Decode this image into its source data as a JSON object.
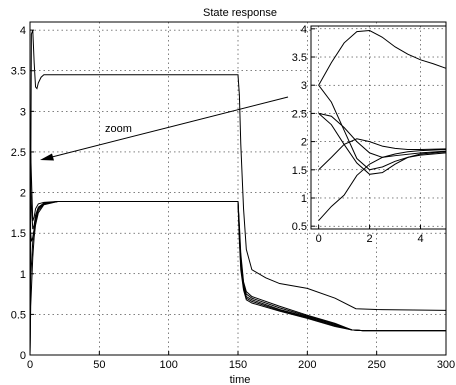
{
  "chart_data": [
    {
      "type": "line",
      "role": "main",
      "title": "State response",
      "xlabel": "time",
      "ylabel": "",
      "xlim": [
        0,
        300
      ],
      "ylim": [
        0,
        4.1
      ],
      "xticks": [
        0,
        50,
        100,
        150,
        200,
        250,
        300
      ],
      "yticks": [
        0,
        0.5,
        1,
        1.5,
        2,
        2.5,
        3,
        3.5,
        4
      ],
      "grid": true,
      "annotation": "zoom",
      "series": [
        {
          "points": [
            [
              0,
              0
            ],
            [
              1,
              3.95
            ],
            [
              2,
              4.0
            ],
            [
              3,
              3.6
            ],
            [
              4,
              3.3
            ],
            [
              5,
              3.28
            ],
            [
              6,
              3.35
            ],
            [
              8,
              3.42
            ],
            [
              10,
              3.45
            ],
            [
              20,
              3.45
            ],
            [
              100,
              3.45
            ],
            [
              150,
              3.45
            ],
            [
              151,
              3.2
            ],
            [
              152,
              2.6
            ],
            [
              154,
              1.8
            ],
            [
              156,
              1.3
            ],
            [
              160,
              1.05
            ],
            [
              170,
              0.95
            ],
            [
              180,
              0.88
            ],
            [
              200,
              0.82
            ],
            [
              220,
              0.7
            ],
            [
              235,
              0.57
            ],
            [
              250,
              0.56
            ],
            [
              300,
              0.55
            ]
          ]
        },
        {
          "points": [
            [
              0,
              0
            ],
            [
              0.5,
              2.5
            ],
            [
              1,
              2.2
            ],
            [
              2,
              1.65
            ],
            [
              3,
              1.7
            ],
            [
              4,
              1.8
            ],
            [
              6,
              1.86
            ],
            [
              10,
              1.88
            ],
            [
              20,
              1.89
            ],
            [
              100,
              1.89
            ],
            [
              150,
              1.89
            ],
            [
              151,
              1.6
            ],
            [
              152,
              1.25
            ],
            [
              154,
              0.9
            ],
            [
              156,
              0.78
            ],
            [
              160,
              0.72
            ],
            [
              180,
              0.6
            ],
            [
              200,
              0.49
            ],
            [
              220,
              0.39
            ],
            [
              232,
              0.31
            ],
            [
              240,
              0.3
            ],
            [
              300,
              0.3
            ]
          ]
        },
        {
          "points": [
            [
              0,
              0
            ],
            [
              0.5,
              2.0
            ],
            [
              1,
              1.85
            ],
            [
              2,
              1.55
            ],
            [
              3,
              1.6
            ],
            [
              4,
              1.72
            ],
            [
              6,
              1.82
            ],
            [
              10,
              1.87
            ],
            [
              20,
              1.89
            ],
            [
              100,
              1.89
            ],
            [
              150,
              1.89
            ],
            [
              151,
              1.55
            ],
            [
              152,
              1.2
            ],
            [
              154,
              0.88
            ],
            [
              156,
              0.75
            ],
            [
              160,
              0.7
            ],
            [
              180,
              0.58
            ],
            [
              200,
              0.48
            ],
            [
              220,
              0.38
            ],
            [
              232,
              0.31
            ],
            [
              240,
              0.3
            ],
            [
              300,
              0.3
            ]
          ]
        },
        {
          "points": [
            [
              0,
              0
            ],
            [
              0.5,
              1.5
            ],
            [
              1,
              1.4
            ],
            [
              2,
              1.45
            ],
            [
              3,
              1.55
            ],
            [
              4,
              1.68
            ],
            [
              6,
              1.8
            ],
            [
              10,
              1.87
            ],
            [
              20,
              1.89
            ],
            [
              100,
              1.89
            ],
            [
              150,
              1.89
            ],
            [
              151,
              1.5
            ],
            [
              152,
              1.15
            ],
            [
              154,
              0.85
            ],
            [
              156,
              0.72
            ],
            [
              160,
              0.68
            ],
            [
              180,
              0.56
            ],
            [
              200,
              0.47
            ],
            [
              220,
              0.37
            ],
            [
              232,
              0.31
            ],
            [
              240,
              0.3
            ],
            [
              300,
              0.3
            ]
          ]
        },
        {
          "points": [
            [
              0,
              0
            ],
            [
              0.5,
              1.0
            ],
            [
              1,
              1.1
            ],
            [
              2,
              1.4
            ],
            [
              3,
              1.55
            ],
            [
              4,
              1.65
            ],
            [
              6,
              1.78
            ],
            [
              10,
              1.86
            ],
            [
              20,
              1.89
            ],
            [
              100,
              1.89
            ],
            [
              150,
              1.89
            ],
            [
              151,
              1.45
            ],
            [
              152,
              1.1
            ],
            [
              154,
              0.82
            ],
            [
              156,
              0.7
            ],
            [
              160,
              0.66
            ],
            [
              180,
              0.55
            ],
            [
              200,
              0.46
            ],
            [
              220,
              0.36
            ],
            [
              232,
              0.31
            ],
            [
              240,
              0.3
            ],
            [
              300,
              0.3
            ]
          ]
        },
        {
          "points": [
            [
              0,
              0
            ],
            [
              0.5,
              0.6
            ],
            [
              1,
              0.8
            ],
            [
              2,
              1.2
            ],
            [
              3,
              1.45
            ],
            [
              4,
              1.6
            ],
            [
              6,
              1.75
            ],
            [
              10,
              1.85
            ],
            [
              20,
              1.89
            ],
            [
              100,
              1.89
            ],
            [
              150,
              1.89
            ],
            [
              151,
              1.4
            ],
            [
              152,
              1.05
            ],
            [
              154,
              0.8
            ],
            [
              156,
              0.68
            ],
            [
              160,
              0.64
            ],
            [
              180,
              0.54
            ],
            [
              200,
              0.45
            ],
            [
              220,
              0.35
            ],
            [
              232,
              0.31
            ],
            [
              240,
              0.3
            ],
            [
              300,
              0.3
            ]
          ]
        }
      ]
    },
    {
      "type": "line",
      "role": "inset",
      "xlim": [
        -0.3,
        5
      ],
      "ylim": [
        0.45,
        4.05
      ],
      "xticks": [
        0,
        2,
        4
      ],
      "yticks": [
        0.5,
        1,
        1.5,
        2,
        2.5,
        3,
        3.5,
        4
      ],
      "grid": true,
      "series": [
        {
          "points": [
            [
              0,
              3.0
            ],
            [
              0.5,
              3.4
            ],
            [
              1,
              3.75
            ],
            [
              1.5,
              3.95
            ],
            [
              2,
              3.97
            ],
            [
              2.5,
              3.85
            ],
            [
              3,
              3.68
            ],
            [
              3.5,
              3.55
            ],
            [
              4,
              3.45
            ],
            [
              4.5,
              3.38
            ],
            [
              5,
              3.3
            ]
          ]
        },
        {
          "points": [
            [
              0,
              3.0
            ],
            [
              0.5,
              2.7
            ],
            [
              1,
              2.2
            ],
            [
              1.5,
              1.7
            ],
            [
              2,
              1.5
            ],
            [
              2.5,
              1.55
            ],
            [
              3,
              1.65
            ],
            [
              3.5,
              1.72
            ],
            [
              4,
              1.76
            ],
            [
              4.5,
              1.78
            ],
            [
              5,
              1.8
            ]
          ]
        },
        {
          "points": [
            [
              0,
              2.5
            ],
            [
              0.5,
              2.45
            ],
            [
              1,
              2.25
            ],
            [
              1.5,
              2.0
            ],
            [
              2,
              1.8
            ],
            [
              2.5,
              1.72
            ],
            [
              3,
              1.75
            ],
            [
              4,
              1.8
            ],
            [
              5,
              1.83
            ]
          ]
        },
        {
          "points": [
            [
              0,
              2.5
            ],
            [
              0.5,
              2.3
            ],
            [
              1,
              1.95
            ],
            [
              1.5,
              1.62
            ],
            [
              2,
              1.42
            ],
            [
              2.5,
              1.45
            ],
            [
              3,
              1.6
            ],
            [
              3.5,
              1.72
            ],
            [
              4,
              1.78
            ],
            [
              5,
              1.82
            ]
          ]
        },
        {
          "points": [
            [
              0,
              1.5
            ],
            [
              0.5,
              1.72
            ],
            [
              1,
              1.95
            ],
            [
              1.5,
              2.05
            ],
            [
              2,
              2.0
            ],
            [
              2.5,
              1.92
            ],
            [
              3,
              1.88
            ],
            [
              3.5,
              1.86
            ],
            [
              4,
              1.86
            ],
            [
              5,
              1.87
            ]
          ]
        },
        {
          "points": [
            [
              0,
              0.6
            ],
            [
              0.5,
              0.85
            ],
            [
              1,
              1.05
            ],
            [
              1.5,
              1.4
            ],
            [
              2,
              1.6
            ],
            [
              2.5,
              1.72
            ],
            [
              3,
              1.78
            ],
            [
              3.5,
              1.82
            ],
            [
              4,
              1.84
            ],
            [
              5,
              1.86
            ]
          ]
        }
      ]
    }
  ]
}
